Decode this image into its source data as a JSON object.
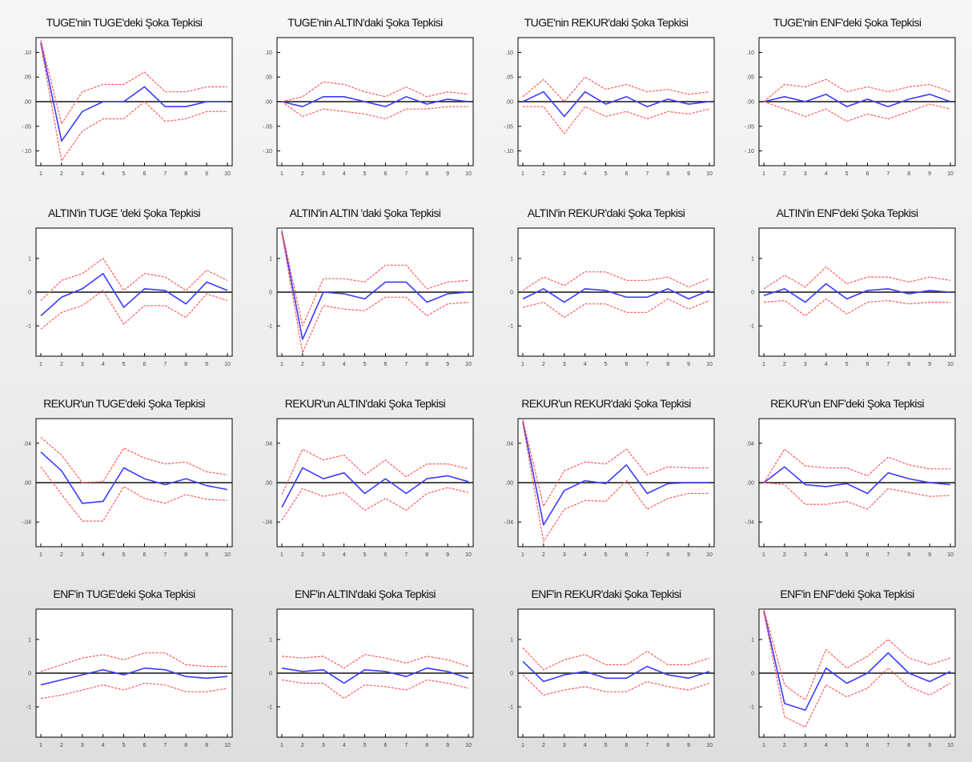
{
  "chart_data": [
    {
      "type": "line",
      "title": "TUGE'nin TUGE'deki Şoka Tepkisi",
      "x": [
        1,
        2,
        3,
        4,
        5,
        6,
        7,
        8,
        9,
        10
      ],
      "ylim": [
        -0.13,
        0.13
      ],
      "yticks": [
        -0.1,
        -0.05,
        0.0,
        0.05,
        0.1
      ],
      "ytick_labels": [
        "-.10",
        "-.05",
        ".00",
        ".05",
        ".10"
      ],
      "series": [
        {
          "values": [
            0.12,
            -0.08,
            -0.02,
            0.0,
            0.0,
            0.03,
            -0.01,
            -0.01,
            0.0,
            0.0
          ]
        },
        {
          "values": [
            0.125,
            -0.045,
            0.02,
            0.035,
            0.035,
            0.06,
            0.02,
            0.02,
            0.03,
            0.03
          ]
        },
        {
          "values": [
            0.115,
            -0.12,
            -0.06,
            -0.035,
            -0.035,
            -0.0,
            -0.04,
            -0.035,
            -0.02,
            -0.02
          ]
        }
      ]
    },
    {
      "type": "line",
      "title": "TUGE'nin ALTIN'daki Şoka Tepkisi",
      "x": [
        1,
        2,
        3,
        4,
        5,
        6,
        7,
        8,
        9,
        10
      ],
      "ylim": [
        -0.13,
        0.13
      ],
      "yticks": [
        -0.1,
        -0.05,
        0.0,
        0.05,
        0.1
      ],
      "ytick_labels": [
        "-.10",
        "-.05",
        ".00",
        ".05",
        ".10"
      ],
      "series": [
        {
          "values": [
            0.0,
            -0.01,
            0.01,
            0.01,
            0.0,
            -0.01,
            0.01,
            -0.005,
            0.005,
            0.0
          ]
        },
        {
          "values": [
            0.0,
            0.01,
            0.04,
            0.035,
            0.02,
            0.01,
            0.03,
            0.01,
            0.02,
            0.015
          ]
        },
        {
          "values": [
            0.0,
            -0.03,
            -0.015,
            -0.02,
            -0.025,
            -0.035,
            -0.015,
            -0.015,
            -0.01,
            -0.01
          ]
        }
      ]
    },
    {
      "type": "line",
      "title": "TUGE'nin REKUR'daki Şoka Tepkisi",
      "x": [
        1,
        2,
        3,
        4,
        5,
        6,
        7,
        8,
        9,
        10
      ],
      "ylim": [
        -0.13,
        0.13
      ],
      "yticks": [
        -0.1,
        -0.05,
        0.0,
        0.05,
        0.1
      ],
      "ytick_labels": [
        "-.10",
        "-.05",
        ".00",
        ".05",
        ".10"
      ],
      "series": [
        {
          "values": [
            0.0,
            0.02,
            -0.03,
            0.02,
            -0.005,
            0.01,
            -0.01,
            0.005,
            -0.005,
            0.0
          ]
        },
        {
          "values": [
            0.01,
            0.045,
            0.0,
            0.05,
            0.025,
            0.035,
            0.02,
            0.025,
            0.015,
            0.02
          ]
        },
        {
          "values": [
            -0.01,
            -0.01,
            -0.065,
            -0.01,
            -0.03,
            -0.02,
            -0.035,
            -0.02,
            -0.025,
            -0.015
          ]
        }
      ]
    },
    {
      "type": "line",
      "title": "TUGE'nin ENF'deki Şoka Tepkisi",
      "x": [
        1,
        2,
        3,
        4,
        5,
        6,
        7,
        8,
        9,
        10
      ],
      "ylim": [
        -0.13,
        0.13
      ],
      "yticks": [
        -0.1,
        -0.05,
        0.0,
        0.05,
        0.1
      ],
      "ytick_labels": [
        "-.10",
        "-.05",
        ".00",
        ".05",
        ".10"
      ],
      "series": [
        {
          "values": [
            0.0,
            0.01,
            0.0,
            0.015,
            -0.01,
            0.005,
            -0.01,
            0.005,
            0.015,
            0.0
          ]
        },
        {
          "values": [
            0.0,
            0.035,
            0.03,
            0.045,
            0.02,
            0.03,
            0.02,
            0.03,
            0.035,
            0.02
          ]
        },
        {
          "values": [
            0.0,
            -0.015,
            -0.03,
            -0.015,
            -0.04,
            -0.025,
            -0.035,
            -0.02,
            -0.005,
            -0.015
          ]
        }
      ]
    },
    {
      "type": "line",
      "title": "ALTIN'in TUGE 'deki Şoka Tepkisi",
      "x": [
        1,
        2,
        3,
        4,
        5,
        6,
        7,
        8,
        9,
        10
      ],
      "ylim": [
        -1.9,
        1.9
      ],
      "yticks": [
        -1,
        0,
        1
      ],
      "ytick_labels": [
        "-1",
        "0",
        "1"
      ],
      "series": [
        {
          "values": [
            -0.7,
            -0.15,
            0.1,
            0.55,
            -0.45,
            0.1,
            0.05,
            -0.35,
            0.3,
            0.05
          ]
        },
        {
          "values": [
            -0.25,
            0.35,
            0.55,
            1.0,
            0.05,
            0.55,
            0.45,
            0.05,
            0.65,
            0.35
          ]
        },
        {
          "values": [
            -1.1,
            -0.6,
            -0.4,
            0.05,
            -0.95,
            -0.4,
            -0.4,
            -0.75,
            -0.05,
            -0.25
          ]
        }
      ]
    },
    {
      "type": "line",
      "title": "ALTIN'in ALTIN 'daki Şoka Tepkisi",
      "x": [
        1,
        2,
        3,
        4,
        5,
        6,
        7,
        8,
        9,
        10
      ],
      "ylim": [
        -1.9,
        1.9
      ],
      "yticks": [
        -1,
        0,
        1
      ],
      "ytick_labels": [
        "-1",
        "0",
        "1"
      ],
      "series": [
        {
          "values": [
            1.8,
            -1.4,
            0.0,
            -0.05,
            -0.2,
            0.3,
            0.3,
            -0.3,
            -0.05,
            0.0
          ]
        },
        {
          "values": [
            1.85,
            -1.0,
            0.4,
            0.4,
            0.3,
            0.8,
            0.8,
            0.1,
            0.3,
            0.35
          ]
        },
        {
          "values": [
            1.75,
            -1.8,
            -0.4,
            -0.5,
            -0.55,
            -0.15,
            -0.15,
            -0.7,
            -0.35,
            -0.3
          ]
        }
      ]
    },
    {
      "type": "line",
      "title": "ALTIN'in REKUR'daki Şoka Tepkisi",
      "x": [
        1,
        2,
        3,
        4,
        5,
        6,
        7,
        8,
        9,
        10
      ],
      "ylim": [
        -1.9,
        1.9
      ],
      "yticks": [
        -1,
        0,
        1
      ],
      "ytick_labels": [
        "-1",
        "0",
        "1"
      ],
      "series": [
        {
          "values": [
            -0.2,
            0.1,
            -0.3,
            0.1,
            0.05,
            -0.15,
            -0.15,
            0.1,
            -0.2,
            0.05
          ]
        },
        {
          "values": [
            0.05,
            0.45,
            0.2,
            0.6,
            0.6,
            0.35,
            0.35,
            0.45,
            0.15,
            0.4
          ]
        },
        {
          "values": [
            -0.45,
            -0.3,
            -0.75,
            -0.35,
            -0.35,
            -0.6,
            -0.6,
            -0.2,
            -0.5,
            -0.25
          ]
        }
      ]
    },
    {
      "type": "line",
      "title": "ALTIN'in ENF'deki Şoka Tepkisi",
      "x": [
        1,
        2,
        3,
        4,
        5,
        6,
        7,
        8,
        9,
        10
      ],
      "ylim": [
        -1.9,
        1.9
      ],
      "yticks": [
        -1,
        0,
        1
      ],
      "ytick_labels": [
        "-1",
        "0",
        "1"
      ],
      "series": [
        {
          "values": [
            -0.1,
            0.1,
            -0.3,
            0.25,
            -0.2,
            0.05,
            0.1,
            -0.05,
            0.05,
            0.0
          ]
        },
        {
          "values": [
            0.1,
            0.5,
            0.15,
            0.75,
            0.25,
            0.45,
            0.45,
            0.3,
            0.45,
            0.35
          ]
        },
        {
          "values": [
            -0.3,
            -0.25,
            -0.7,
            -0.2,
            -0.65,
            -0.3,
            -0.25,
            -0.35,
            -0.3,
            -0.3
          ]
        }
      ]
    },
    {
      "type": "line",
      "title": "REKUR'un TUGE'deki Şoka Tepkisi",
      "x": [
        1,
        2,
        3,
        4,
        5,
        6,
        7,
        8,
        9,
        10
      ],
      "ylim": [
        -0.065,
        0.065
      ],
      "yticks": [
        -0.04,
        0.0,
        0.04
      ],
      "ytick_labels": [
        "-.04",
        ".00",
        ".04"
      ],
      "series": [
        {
          "values": [
            0.031,
            0.012,
            -0.021,
            -0.019,
            0.015,
            0.004,
            -0.002,
            0.004,
            -0.003,
            -0.007
          ]
        },
        {
          "values": [
            0.046,
            0.028,
            0.0,
            0.001,
            0.035,
            0.025,
            0.019,
            0.021,
            0.011,
            0.008
          ]
        },
        {
          "values": [
            0.016,
            -0.012,
            -0.039,
            -0.039,
            -0.004,
            -0.016,
            -0.021,
            -0.012,
            -0.017,
            -0.018
          ]
        }
      ]
    },
    {
      "type": "line",
      "title": "REKUR'un ALTIN'daki Şoka Tepkisi",
      "x": [
        1,
        2,
        3,
        4,
        5,
        6,
        7,
        8,
        9,
        10
      ],
      "ylim": [
        -0.065,
        0.065
      ],
      "yticks": [
        -0.04,
        0.0,
        0.04
      ],
      "ytick_labels": [
        "-.04",
        ".00",
        ".04"
      ],
      "series": [
        {
          "values": [
            -0.025,
            0.015,
            0.004,
            0.01,
            -0.011,
            0.004,
            -0.011,
            0.004,
            0.007,
            0.001
          ]
        },
        {
          "values": [
            -0.012,
            0.034,
            0.023,
            0.028,
            0.008,
            0.023,
            0.006,
            0.019,
            0.019,
            0.014
          ]
        },
        {
          "values": [
            -0.038,
            -0.006,
            -0.014,
            -0.01,
            -0.028,
            -0.016,
            -0.028,
            -0.011,
            -0.005,
            -0.01
          ]
        }
      ]
    },
    {
      "type": "line",
      "title": "REKUR'un REKUR'daki Şoka Tepkisi",
      "x": [
        1,
        2,
        3,
        4,
        5,
        6,
        7,
        8,
        9,
        10
      ],
      "ylim": [
        -0.065,
        0.065
      ],
      "yticks": [
        -0.04,
        0.0,
        0.04
      ],
      "ytick_labels": [
        "-.04",
        ".00",
        ".04"
      ],
      "series": [
        {
          "values": [
            0.062,
            -0.043,
            -0.008,
            0.002,
            -0.001,
            0.018,
            -0.011,
            -0.001,
            0.0,
            0.0
          ]
        },
        {
          "values": [
            0.064,
            -0.024,
            0.012,
            0.021,
            0.019,
            0.034,
            0.008,
            0.016,
            0.015,
            0.015
          ]
        },
        {
          "values": [
            0.06,
            -0.06,
            -0.027,
            -0.018,
            -0.019,
            0.002,
            -0.027,
            -0.016,
            -0.011,
            -0.011
          ]
        }
      ]
    },
    {
      "type": "line",
      "title": "REKUR'un ENF'deki Şoka Tepkisi",
      "x": [
        1,
        2,
        3,
        4,
        5,
        6,
        7,
        8,
        9,
        10
      ],
      "ylim": [
        -0.065,
        0.065
      ],
      "yticks": [
        -0.04,
        0.0,
        0.04
      ],
      "ytick_labels": [
        "-.04",
        ".00",
        ".04"
      ],
      "series": [
        {
          "values": [
            0.0,
            0.016,
            -0.002,
            -0.004,
            -0.001,
            -0.011,
            0.01,
            0.004,
            0.0,
            -0.002
          ]
        },
        {
          "values": [
            0.0,
            0.034,
            0.017,
            0.015,
            0.015,
            0.007,
            0.026,
            0.018,
            0.014,
            0.014
          ]
        },
        {
          "values": [
            0.0,
            -0.002,
            -0.022,
            -0.022,
            -0.019,
            -0.027,
            -0.006,
            -0.01,
            -0.014,
            -0.013
          ]
        }
      ]
    },
    {
      "type": "line",
      "title": "ENF'in TUGE'deki Şoka Tepkisi",
      "x": [
        1,
        2,
        3,
        4,
        5,
        6,
        7,
        8,
        9,
        10
      ],
      "ylim": [
        -1.9,
        1.9
      ],
      "yticks": [
        -1,
        0,
        1
      ],
      "ytick_labels": [
        "-1",
        "0",
        "1"
      ],
      "series": [
        {
          "values": [
            -0.35,
            -0.2,
            -0.05,
            0.1,
            -0.05,
            0.15,
            0.1,
            -0.1,
            -0.15,
            -0.1
          ]
        },
        {
          "values": [
            0.05,
            0.25,
            0.45,
            0.55,
            0.4,
            0.6,
            0.6,
            0.25,
            0.2,
            0.2
          ]
        },
        {
          "values": [
            -0.75,
            -0.65,
            -0.5,
            -0.35,
            -0.5,
            -0.3,
            -0.35,
            -0.55,
            -0.55,
            -0.45
          ]
        }
      ]
    },
    {
      "type": "line",
      "title": "ENF'in ALTIN'daki Şoka Tepkisi",
      "x": [
        1,
        2,
        3,
        4,
        5,
        6,
        7,
        8,
        9,
        10
      ],
      "ylim": [
        -1.9,
        1.9
      ],
      "yticks": [
        -1,
        0,
        1
      ],
      "ytick_labels": [
        "-1",
        "0",
        "1"
      ],
      "series": [
        {
          "values": [
            0.15,
            0.05,
            0.1,
            -0.3,
            0.1,
            0.05,
            -0.1,
            0.15,
            0.05,
            -0.15
          ]
        },
        {
          "values": [
            0.5,
            0.45,
            0.5,
            0.15,
            0.55,
            0.45,
            0.3,
            0.5,
            0.4,
            0.2
          ]
        },
        {
          "values": [
            -0.2,
            -0.3,
            -0.3,
            -0.75,
            -0.35,
            -0.4,
            -0.5,
            -0.2,
            -0.3,
            -0.45
          ]
        }
      ]
    },
    {
      "type": "line",
      "title": "ENF'in REKUR'daki Şoka Tepkisi",
      "x": [
        1,
        2,
        3,
        4,
        5,
        6,
        7,
        8,
        9,
        10
      ],
      "ylim": [
        -1.9,
        1.9
      ],
      "yticks": [
        -1,
        0,
        1
      ],
      "ytick_labels": [
        "-1",
        "0",
        "1"
      ],
      "series": [
        {
          "values": [
            0.35,
            -0.25,
            -0.05,
            0.05,
            -0.15,
            -0.15,
            0.2,
            -0.05,
            -0.15,
            0.05
          ]
        },
        {
          "values": [
            0.75,
            0.1,
            0.4,
            0.55,
            0.25,
            0.25,
            0.65,
            0.25,
            0.25,
            0.45
          ]
        },
        {
          "values": [
            -0.05,
            -0.65,
            -0.5,
            -0.4,
            -0.55,
            -0.55,
            -0.25,
            -0.4,
            -0.5,
            -0.3
          ]
        }
      ]
    },
    {
      "type": "line",
      "title": "ENF'in ENF'deki Şoka Tepkisi",
      "x": [
        1,
        2,
        3,
        4,
        5,
        6,
        7,
        8,
        9,
        10
      ],
      "ylim": [
        -1.9,
        1.9
      ],
      "yticks": [
        -1,
        0,
        1
      ],
      "ytick_labels": [
        "-1",
        "0",
        "1"
      ],
      "series": [
        {
          "values": [
            1.85,
            -0.9,
            -1.1,
            0.15,
            -0.3,
            0.0,
            0.6,
            0.0,
            -0.25,
            0.05
          ]
        },
        {
          "values": [
            1.9,
            -0.35,
            -0.8,
            0.7,
            0.15,
            0.5,
            1.0,
            0.45,
            0.25,
            0.45
          ]
        },
        {
          "values": [
            1.8,
            -1.3,
            -1.6,
            -0.35,
            -0.7,
            -0.45,
            0.15,
            -0.4,
            -0.65,
            -0.3
          ]
        }
      ]
    }
  ],
  "style": {
    "center_line_color": "#3b3bff",
    "band_color": "#ff5a5a",
    "zero_line_color": "#111111",
    "frame_color": "#000000",
    "plot_bg": "#ffffff"
  }
}
